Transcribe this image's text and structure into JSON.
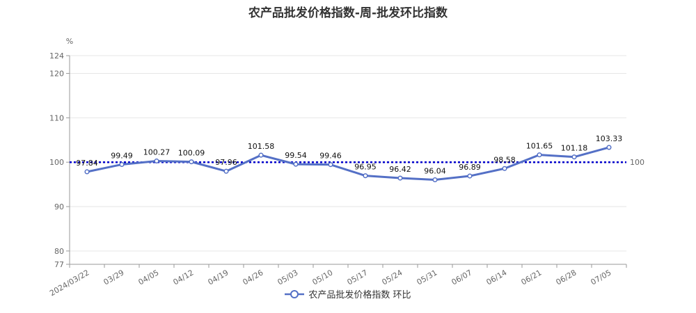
{
  "title": "农产品批发价格指数-周-批发环比指数",
  "chart_data": {
    "type": "line",
    "title": "农产品批发价格指数-周-批发环比指数",
    "unit_label": "%",
    "categories": [
      "2024/03/22",
      "03/29",
      "04/05",
      "04/12",
      "04/19",
      "04/26",
      "05/03",
      "05/10",
      "05/17",
      "05/24",
      "05/31",
      "06/07",
      "06/14",
      "06/21",
      "06/28",
      "07/05"
    ],
    "series": [
      {
        "name": "农产品批发价格指数 环比",
        "values": [
          97.84,
          99.49,
          100.27,
          100.09,
          97.96,
          101.58,
          99.54,
          99.46,
          96.95,
          96.42,
          96.04,
          96.89,
          98.58,
          101.65,
          101.18,
          103.33
        ],
        "color": "#5470c6"
      }
    ],
    "reference_line": {
      "value": 100,
      "label": "100",
      "color": "#0000cc",
      "style": "dotted"
    },
    "ylim": [
      77,
      124
    ],
    "yticks": [
      77,
      80,
      90,
      100,
      110,
      120,
      124
    ],
    "grid": true,
    "legend_position": "bottom"
  }
}
